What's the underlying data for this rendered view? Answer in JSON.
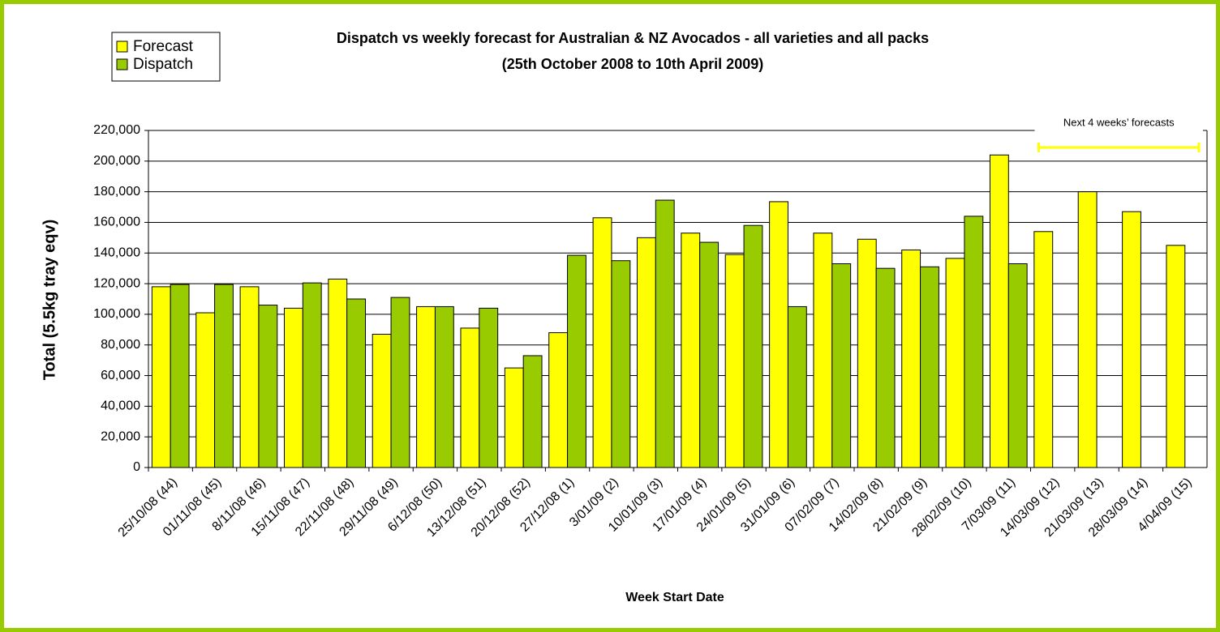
{
  "chart_data": {
    "type": "bar",
    "title": "Dispatch vs weekly forecast for Australian & NZ Avocados - all varieties and all packs",
    "subtitle": "(25th October 2008 to 10th April 2009)",
    "x_label": "Week Start Date",
    "y_label": "Total (5.5kg tray eqv)",
    "annotation": "Next 4 weeks’ forecasts",
    "categories": [
      "25/10/08 (44)",
      "01/11/08 (45)",
      "8/11/08 (46)",
      "15/11/08 (47)",
      "22/11/08 (48)",
      "29/11/08 (49)",
      "6/12/08 (50)",
      "13/12/08 (51)",
      "20/12/08 (52)",
      "27/12/08 (1)",
      "3/01/09 (2)",
      "10/01/09 (3)",
      "17/01/09 (4)",
      "24/01/09 (5)",
      "31/01/09 (6)",
      "07/02/09 (7)",
      "14/02/09 (8)",
      "21/02/09 (9)",
      "28/02/09 (10)",
      "7/03/09 (11)",
      "14/03/09 (12)",
      "21/03/09 (13)",
      "28/03/09 (14)",
      "4/04/09 (15)"
    ],
    "series": [
      {
        "name": "Forecast",
        "color": "#ffff00",
        "values": [
          118000,
          101000,
          118000,
          104000,
          123000,
          87000,
          105000,
          91000,
          65000,
          88000,
          163000,
          150000,
          153000,
          139000,
          173500,
          153000,
          149000,
          142000,
          136500,
          204000,
          154000,
          180000,
          167000,
          145000
        ]
      },
      {
        "name": "Dispatch",
        "color": "#99cc00",
        "values": [
          119500,
          119500,
          106000,
          120500,
          110000,
          111000,
          105000,
          104000,
          73000,
          138500,
          135000,
          174500,
          147000,
          158000,
          105000,
          133000,
          130000,
          131000,
          164000,
          133000,
          null,
          null,
          null,
          null
        ]
      }
    ],
    "ylim": [
      0,
      220000
    ],
    "yticks": [
      0,
      {
        "value": 20000,
        "label": "20,000"
      },
      {
        "value": 40000,
        "label": "40,000"
      },
      {
        "value": 60000,
        "label": "60,000"
      },
      {
        "value": 80000,
        "label": "80,000"
      },
      {
        "value": 100000,
        "label": "100,000"
      },
      {
        "value": 120000,
        "label": "120,000"
      },
      {
        "value": 140000,
        "label": "140,000"
      },
      {
        "value": 160000,
        "label": "160,000"
      },
      {
        "value": 180000,
        "label": "180,000"
      },
      {
        "value": 200000,
        "label": "200,000"
      },
      {
        "value": 220000,
        "label": "220,000"
      }
    ],
    "grid": true
  }
}
